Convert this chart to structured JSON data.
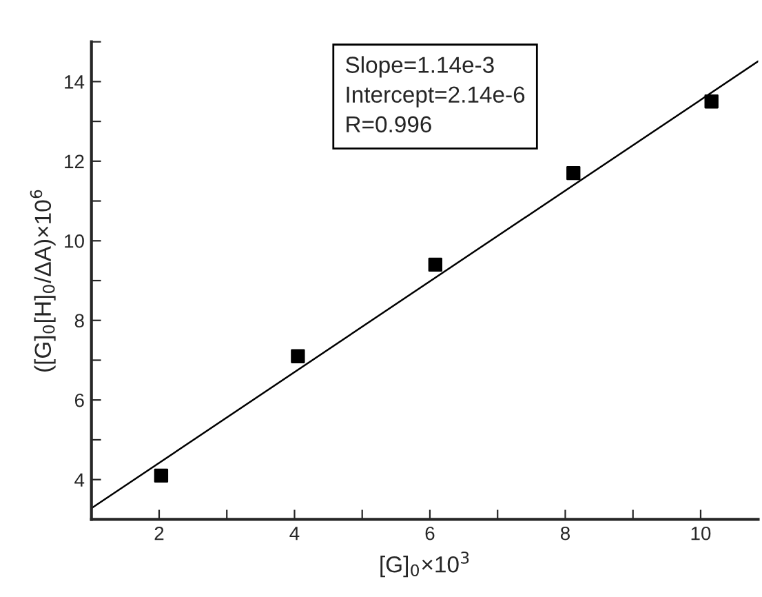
{
  "chart_data": {
    "type": "scatter",
    "xlabel": "[G]$_{0}$×10$^{3}$",
    "ylabel": "([G]$_{0}$[H]$_{0}$/ΔA)×10$^{6}$",
    "annotations": [
      "Slope=1.14e-3\nIntercept=2.14e-6\nR=0.996"
    ],
    "x": [
      2.03,
      4.05,
      6.08,
      8.12,
      10.16
    ],
    "series": [
      {
        "color": "#000000",
        "marker": "square",
        "values": [
          4.1,
          7.1,
          9.4,
          11.7,
          13.5
        ]
      },
      {
        "type": "line",
        "color": "#000000",
        "marker": "none",
        "x": [
          1,
          10.85
        ],
        "values": [
          3.28,
          14.51
        ]
      }
    ],
    "xlim": [
      1,
      10.85
    ],
    "ylim": [
      3,
      15
    ],
    "xticks": [
      {
        "value": 1,
        "label": null
      },
      2,
      {
        "value": 3,
        "label": null
      },
      4,
      {
        "value": 5,
        "label": null
      },
      6,
      {
        "value": 7,
        "label": null
      },
      8,
      {
        "value": 9,
        "label": null
      },
      10
    ],
    "yticks": [
      {
        "value": 3,
        "label": null
      },
      4,
      {
        "value": 5,
        "label": null
      },
      6,
      {
        "value": 7,
        "label": null
      },
      8,
      {
        "value": 9,
        "label": null
      },
      10,
      {
        "value": 11,
        "label": null
      },
      12,
      {
        "value": 13,
        "label": null
      },
      14,
      {
        "value": 15,
        "label": null
      }
    ],
    "grid": false,
    "legend": false
  }
}
